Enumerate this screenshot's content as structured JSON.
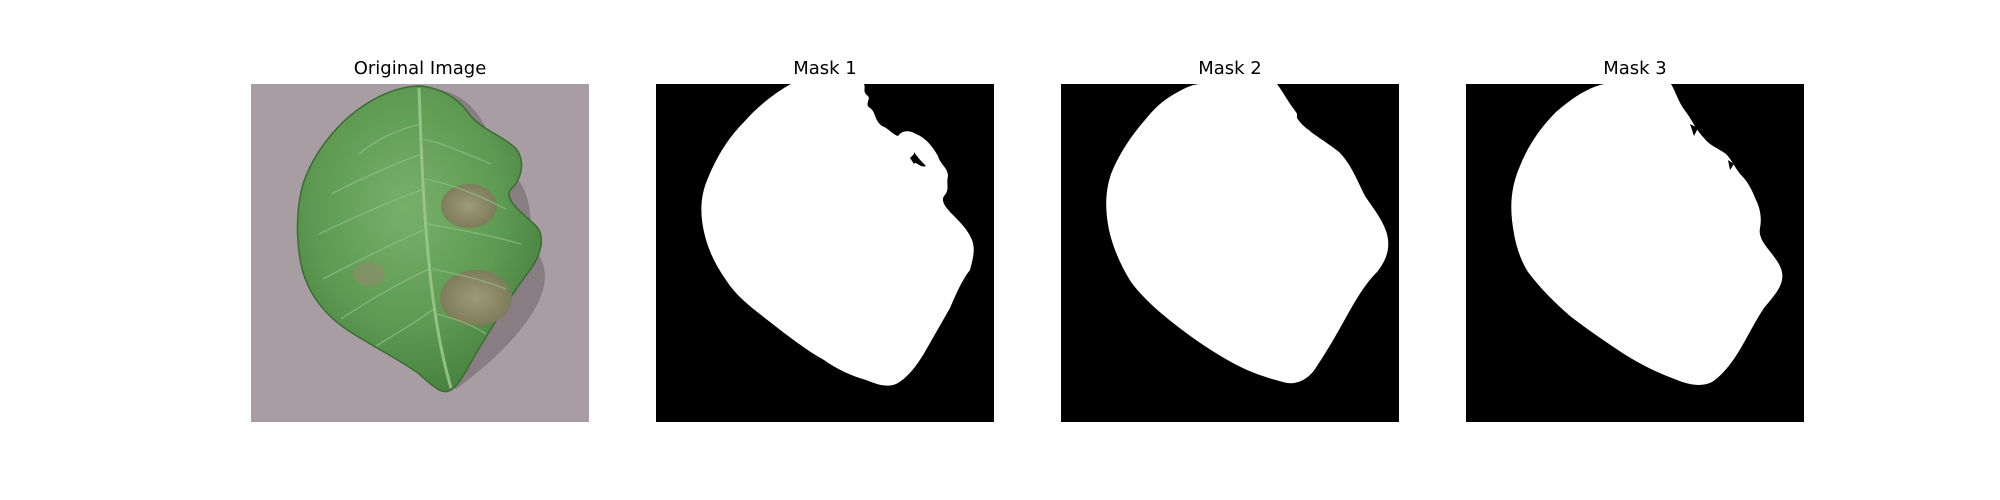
{
  "panels": [
    {
      "title": "Original Image",
      "kind": "photo",
      "subject": "potato-leaf"
    },
    {
      "title": "Mask 1",
      "kind": "mask"
    },
    {
      "title": "Mask 2",
      "kind": "mask"
    },
    {
      "title": "Mask 3",
      "kind": "mask"
    }
  ],
  "colors": {
    "background": "#ffffff",
    "photo_background": "#a59aa0",
    "leaf_dark": "#3f7a3a",
    "leaf_mid": "#5e9a52",
    "leaf_light": "#78b06a",
    "lesion": "#8f8a69",
    "mask_background": "#000000",
    "mask_foreground": "#ffffff"
  }
}
